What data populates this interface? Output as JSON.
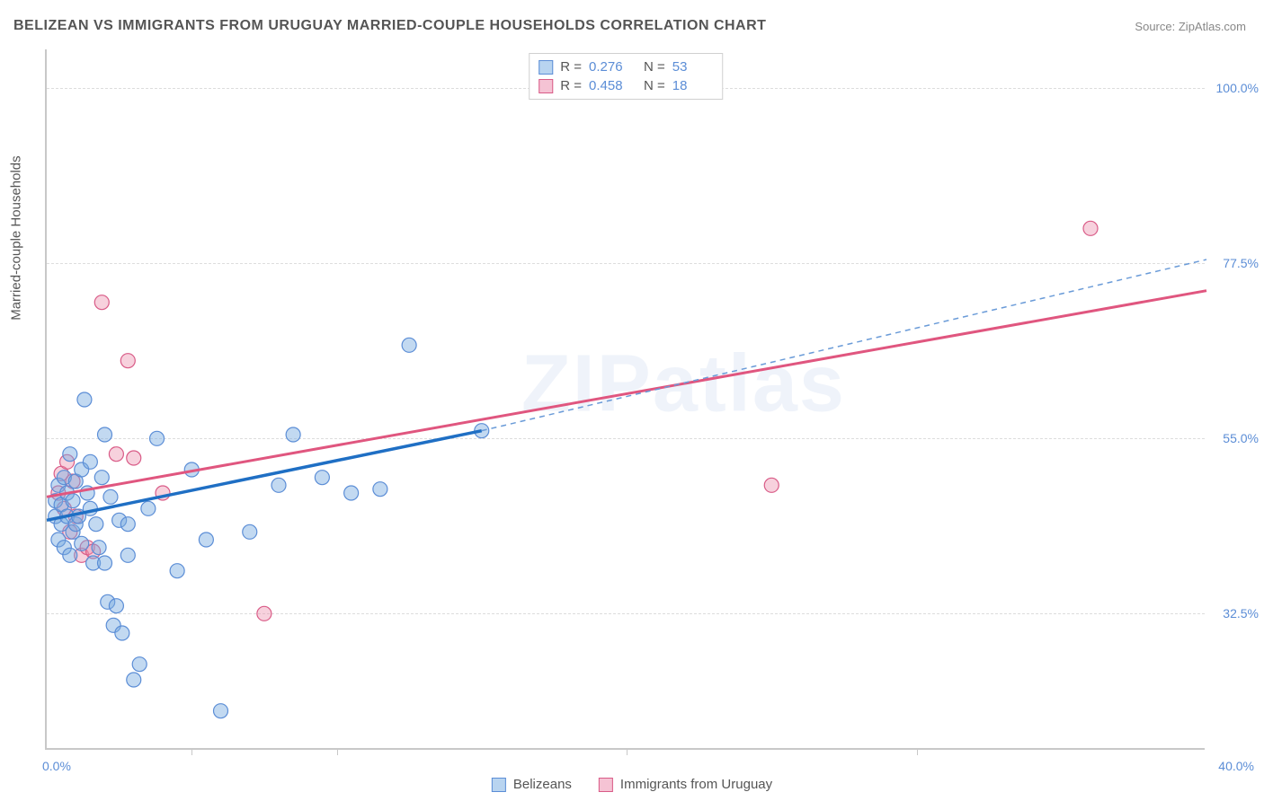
{
  "title": "BELIZEAN VS IMMIGRANTS FROM URUGUAY MARRIED-COUPLE HOUSEHOLDS CORRELATION CHART",
  "source_label": "Source:",
  "source_name": "ZipAtlas.com",
  "ylabel": "Married-couple Households",
  "watermark": "ZIPatlas",
  "chart": {
    "type": "scatter",
    "xlim": [
      0,
      40
    ],
    "ylim": [
      15,
      105
    ],
    "x_ticks": [
      5,
      10,
      20,
      30
    ],
    "y_gridlines": [
      32.5,
      55.0,
      77.5,
      100.0
    ],
    "y_tick_labels": [
      "32.5%",
      "55.0%",
      "77.5%",
      "100.0%"
    ],
    "xlim_labels": {
      "min": "0.0%",
      "max": "40.0%"
    },
    "background_color": "#ffffff",
    "grid_color": "#dddddd",
    "axis_color": "#c8c8c8",
    "tick_label_color": "#5b8dd6",
    "series": [
      {
        "key": "belizeans",
        "label": "Belizeans",
        "color_fill": "rgba(120,170,225,0.45)",
        "color_stroke": "#5b8dd6",
        "swatch_fill": "#b8d4f0",
        "swatch_border": "#5b8dd6",
        "line_color_solid": "#1f6fc4",
        "line_color_dashed": "#6a9bd8",
        "R": "0.276",
        "N": "53",
        "trend": {
          "x1": 0,
          "y1": 44.5,
          "x_mid": 15,
          "y_mid": 56,
          "x2": 40,
          "y2": 78
        },
        "points": [
          [
            0.3,
            45
          ],
          [
            0.3,
            47
          ],
          [
            0.4,
            42
          ],
          [
            0.4,
            49
          ],
          [
            0.5,
            44
          ],
          [
            0.5,
            46.5
          ],
          [
            0.6,
            50
          ],
          [
            0.6,
            41
          ],
          [
            0.7,
            48
          ],
          [
            0.7,
            45
          ],
          [
            0.8,
            40
          ],
          [
            0.8,
            53
          ],
          [
            0.9,
            43
          ],
          [
            0.9,
            47
          ],
          [
            1.0,
            44
          ],
          [
            1.0,
            49.5
          ],
          [
            1.1,
            45
          ],
          [
            1.2,
            51
          ],
          [
            1.2,
            41.5
          ],
          [
            1.3,
            60
          ],
          [
            1.4,
            48
          ],
          [
            1.5,
            46
          ],
          [
            1.5,
            52
          ],
          [
            1.6,
            39
          ],
          [
            1.7,
            44
          ],
          [
            1.8,
            41
          ],
          [
            1.9,
            50
          ],
          [
            2.0,
            39
          ],
          [
            2.0,
            55.5
          ],
          [
            2.1,
            34
          ],
          [
            2.2,
            47.5
          ],
          [
            2.3,
            31
          ],
          [
            2.4,
            33.5
          ],
          [
            2.5,
            44.5
          ],
          [
            2.6,
            30
          ],
          [
            2.8,
            44
          ],
          [
            2.8,
            40
          ],
          [
            3.0,
            24
          ],
          [
            3.2,
            26
          ],
          [
            3.5,
            46
          ],
          [
            3.8,
            55
          ],
          [
            4.5,
            38
          ],
          [
            5.0,
            51
          ],
          [
            5.5,
            42
          ],
          [
            6.0,
            20
          ],
          [
            7.0,
            43
          ],
          [
            8.0,
            49
          ],
          [
            8.5,
            55.5
          ],
          [
            9.5,
            50
          ],
          [
            10.5,
            48
          ],
          [
            11.5,
            48.5
          ],
          [
            12.5,
            67
          ],
          [
            15,
            56
          ]
        ]
      },
      {
        "key": "uruguay",
        "label": "Immigrants from Uruguay",
        "color_fill": "rgba(235,140,170,0.4)",
        "color_stroke": "#d95b87",
        "swatch_fill": "#f5c3d4",
        "swatch_border": "#d95b87",
        "line_color_solid": "#e0567f",
        "R": "0.458",
        "N": "18",
        "trend": {
          "x1": 0,
          "y1": 47.5,
          "x2": 40,
          "y2": 74
        },
        "points": [
          [
            0.4,
            48
          ],
          [
            0.5,
            50.5
          ],
          [
            0.6,
            46
          ],
          [
            0.7,
            52
          ],
          [
            0.8,
            43
          ],
          [
            0.9,
            49.5
          ],
          [
            1.0,
            45
          ],
          [
            1.2,
            40
          ],
          [
            1.4,
            41
          ],
          [
            1.6,
            40.5
          ],
          [
            1.9,
            72.5
          ],
          [
            2.4,
            53
          ],
          [
            2.8,
            65
          ],
          [
            3.0,
            52.5
          ],
          [
            4.0,
            48
          ],
          [
            7.5,
            32.5
          ],
          [
            25,
            49
          ],
          [
            36,
            82
          ]
        ]
      }
    ]
  },
  "legend_top": {
    "r_label": "R  =",
    "n_label": "N  ="
  }
}
